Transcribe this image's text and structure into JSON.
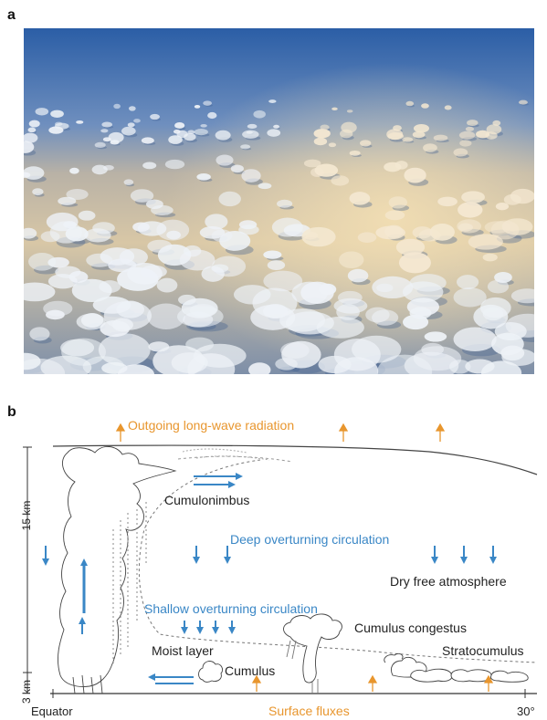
{
  "panels": {
    "a_label": "a",
    "b_label": "b"
  },
  "colors": {
    "radiation": "#E8962E",
    "circulation": "#3A87C6",
    "text": "#222222",
    "sky_top": "#2D5FA3",
    "sky_haze": "#E9D9B8"
  },
  "diagram": {
    "outgoing_radiation": "Outgoing long-wave radiation",
    "cumulonimbus": "Cumulonimbus",
    "deep_circulation": "Deep overturning circulation",
    "dry_free_atmosphere": "Dry free atmosphere",
    "shallow_circulation": "Shallow overturning circulation",
    "cumulus_congestus": "Cumulus congestus",
    "moist_layer": "Moist layer",
    "cumulus": "Cumulus",
    "stratocumulus": "Stratocumulus",
    "surface_fluxes": "Surface fluxes",
    "x_start": "Equator",
    "x_end": "30°",
    "y_top": "15 km",
    "y_bottom": "3 km"
  }
}
